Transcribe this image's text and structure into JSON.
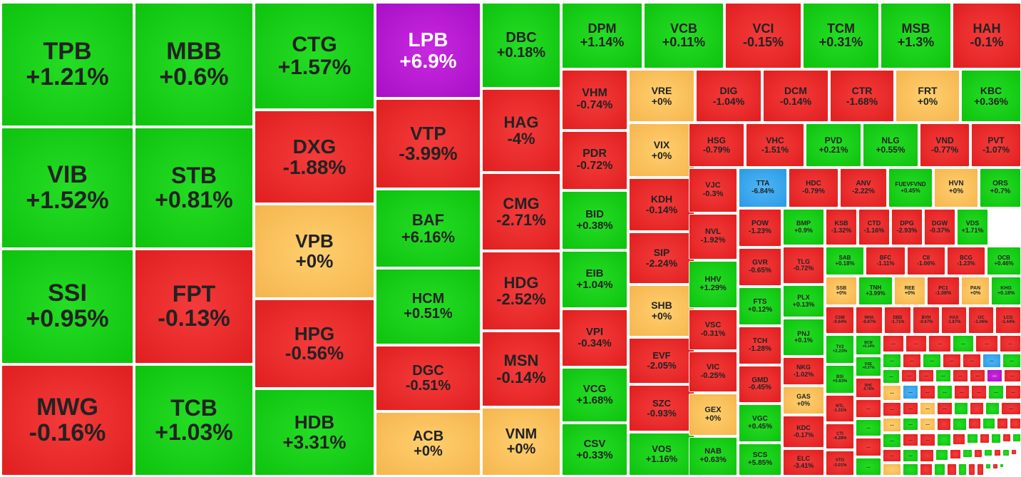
{
  "chart_data": {
    "type": "treemap",
    "title": "",
    "colors": {
      "up": "#13c813",
      "down": "#e82828",
      "reference": "#f9c262",
      "ceiling": "#b418d2",
      "floor": "#3aa8ee"
    },
    "tiles": [
      {
        "symbol": "TPB",
        "change": "+1.21%",
        "status": "up"
      },
      {
        "symbol": "VIB",
        "change": "+1.52%",
        "status": "up"
      },
      {
        "symbol": "SSI",
        "change": "+0.95%",
        "status": "up"
      },
      {
        "symbol": "MWG",
        "change": "-0.16%",
        "status": "down"
      },
      {
        "symbol": "MBB",
        "change": "+0.6%",
        "status": "up"
      },
      {
        "symbol": "STB",
        "change": "+0.81%",
        "status": "up"
      },
      {
        "symbol": "FPT",
        "change": "-0.13%",
        "status": "down"
      },
      {
        "symbol": "TCB",
        "change": "+1.03%",
        "status": "up"
      },
      {
        "symbol": "CTG",
        "change": "+1.57%",
        "status": "up"
      },
      {
        "symbol": "DXG",
        "change": "-1.88%",
        "status": "down"
      },
      {
        "symbol": "VPB",
        "change": "+0%",
        "status": "ref"
      },
      {
        "symbol": "HPG",
        "change": "-0.56%",
        "status": "down"
      },
      {
        "symbol": "HDB",
        "change": "+3.31%",
        "status": "up"
      },
      {
        "symbol": "LPB",
        "change": "+6.9%",
        "status": "ceil"
      },
      {
        "symbol": "VTP",
        "change": "-3.99%",
        "status": "down"
      },
      {
        "symbol": "BAF",
        "change": "+6.16%",
        "status": "up"
      },
      {
        "symbol": "HCM",
        "change": "+0.51%",
        "status": "up"
      },
      {
        "symbol": "DGC",
        "change": "-0.51%",
        "status": "down"
      },
      {
        "symbol": "ACB",
        "change": "+0%",
        "status": "ref"
      },
      {
        "symbol": "DBC",
        "change": "+0.18%",
        "status": "up"
      },
      {
        "symbol": "HAG",
        "change": "-4%",
        "status": "down"
      },
      {
        "symbol": "CMG",
        "change": "-2.71%",
        "status": "down"
      },
      {
        "symbol": "HDG",
        "change": "-2.52%",
        "status": "down"
      },
      {
        "symbol": "MSN",
        "change": "-0.14%",
        "status": "down"
      },
      {
        "symbol": "VNM",
        "change": "+0%",
        "status": "ref"
      },
      {
        "symbol": "DPM",
        "change": "+1.14%",
        "status": "up"
      },
      {
        "symbol": "VCB",
        "change": "+0.11%",
        "status": "up"
      },
      {
        "symbol": "VCI",
        "change": "-0.15%",
        "status": "down"
      },
      {
        "symbol": "TCM",
        "change": "+0.31%",
        "status": "up"
      },
      {
        "symbol": "MSB",
        "change": "+1.3%",
        "status": "up"
      },
      {
        "symbol": "HAH",
        "change": "-0.1%",
        "status": "down"
      },
      {
        "symbol": "VHM",
        "change": "-0.74%",
        "status": "down"
      },
      {
        "symbol": "PDR",
        "change": "-0.72%",
        "status": "down"
      },
      {
        "symbol": "BID",
        "change": "+0.38%",
        "status": "up"
      },
      {
        "symbol": "EIB",
        "change": "+1.04%",
        "status": "up"
      },
      {
        "symbol": "VPI",
        "change": "-0.34%",
        "status": "down"
      },
      {
        "symbol": "VCG",
        "change": "+1.68%",
        "status": "up"
      },
      {
        "symbol": "CSV",
        "change": "+0.33%",
        "status": "up"
      },
      {
        "symbol": "VRE",
        "change": "+0%",
        "status": "ref"
      },
      {
        "symbol": "VIX",
        "change": "+0%",
        "status": "ref"
      },
      {
        "symbol": "KDH",
        "change": "-0.14%",
        "status": "down"
      },
      {
        "symbol": "SIP",
        "change": "-2.24%",
        "status": "down"
      },
      {
        "symbol": "SHB",
        "change": "+0%",
        "status": "ref"
      },
      {
        "symbol": "EVF",
        "change": "-2.05%",
        "status": "down"
      },
      {
        "symbol": "SZC",
        "change": "-0.93%",
        "status": "down"
      },
      {
        "symbol": "VOS",
        "change": "+1.16%",
        "status": "up"
      },
      {
        "symbol": "DIG",
        "change": "-1.04%",
        "status": "down"
      },
      {
        "symbol": "DCM",
        "change": "-0.14%",
        "status": "down"
      },
      {
        "symbol": "CTR",
        "change": "-1.68%",
        "status": "down"
      },
      {
        "symbol": "FRT",
        "change": "+0%",
        "status": "ref"
      },
      {
        "symbol": "KBC",
        "change": "+0.36%",
        "status": "up"
      },
      {
        "symbol": "HSG",
        "change": "-0.79%",
        "status": "down"
      },
      {
        "symbol": "VHC",
        "change": "-1.51%",
        "status": "down"
      },
      {
        "symbol": "PVD",
        "change": "+0.21%",
        "status": "up"
      },
      {
        "symbol": "NLG",
        "change": "+0.55%",
        "status": "up"
      },
      {
        "symbol": "VND",
        "change": "-0.77%",
        "status": "down"
      },
      {
        "symbol": "PVT",
        "change": "-1.07%",
        "status": "down"
      },
      {
        "symbol": "VJC",
        "change": "-0.3%",
        "status": "down"
      },
      {
        "symbol": "TTA",
        "change": "-6.84%",
        "status": "floor"
      },
      {
        "symbol": "HDC",
        "change": "-0.79%",
        "status": "down"
      },
      {
        "symbol": "ANV",
        "change": "-2.22%",
        "status": "down"
      },
      {
        "symbol": "FUEVFVND",
        "change": "+0.45%",
        "status": "up"
      },
      {
        "symbol": "HVN",
        "change": "+0%",
        "status": "ref"
      },
      {
        "symbol": "ORS",
        "change": "+0.7%",
        "status": "up"
      },
      {
        "symbol": "NVL",
        "change": "-1.92%",
        "status": "down"
      },
      {
        "symbol": "HHV",
        "change": "+1.29%",
        "status": "up"
      },
      {
        "symbol": "VSC",
        "change": "-0.31%",
        "status": "down"
      },
      {
        "symbol": "VIC",
        "change": "-0.25%",
        "status": "down"
      },
      {
        "symbol": "GEX",
        "change": "+0%",
        "status": "ref"
      },
      {
        "symbol": "NAB",
        "change": "+0.63%",
        "status": "up"
      },
      {
        "symbol": "POW",
        "change": "-1.23%",
        "status": "down"
      },
      {
        "symbol": "GVR",
        "change": "-0.65%",
        "status": "down"
      },
      {
        "symbol": "FTS",
        "change": "+0.12%",
        "status": "up"
      },
      {
        "symbol": "TCH",
        "change": "-1.28%",
        "status": "down"
      },
      {
        "symbol": "GMD",
        "change": "-0.45%",
        "status": "down"
      },
      {
        "symbol": "VGC",
        "change": "+0.45%",
        "status": "up"
      },
      {
        "symbol": "SCS",
        "change": "+5.85%",
        "status": "up"
      },
      {
        "symbol": "BMP",
        "change": "+0.9%",
        "status": "up"
      },
      {
        "symbol": "TLG",
        "change": "-0.72%",
        "status": "down"
      },
      {
        "symbol": "PLX",
        "change": "+0.13%",
        "status": "up"
      },
      {
        "symbol": "PNJ",
        "change": "+0.1%",
        "status": "up"
      },
      {
        "symbol": "NKG",
        "change": "-1.02%",
        "status": "down"
      },
      {
        "symbol": "GAS",
        "change": "+0%",
        "status": "ref"
      },
      {
        "symbol": "KDC",
        "change": "-0.17%",
        "status": "down"
      },
      {
        "symbol": "ELC",
        "change": "-3.41%",
        "status": "down"
      },
      {
        "symbol": "KSB",
        "change": "-1.32%",
        "status": "down"
      },
      {
        "symbol": "CTD",
        "change": "-1.16%",
        "status": "down"
      },
      {
        "symbol": "DPG",
        "change": "-2.93%",
        "status": "down"
      },
      {
        "symbol": "DGW",
        "change": "-0.37%",
        "status": "down"
      },
      {
        "symbol": "VDS",
        "change": "+1.71%",
        "status": "up"
      },
      {
        "symbol": "SAB",
        "change": "+0.18%",
        "status": "up"
      },
      {
        "symbol": "BFC",
        "change": "-1.11%",
        "status": "down"
      },
      {
        "symbol": "CII",
        "change": "-1.06%",
        "status": "down"
      },
      {
        "symbol": "BCG",
        "change": "-1.23%",
        "status": "down"
      },
      {
        "symbol": "OCB",
        "change": "+0.46%",
        "status": "up"
      },
      {
        "symbol": "SSB",
        "change": "+0%",
        "status": "ref"
      },
      {
        "symbol": "TNH",
        "change": "+3.99%",
        "status": "up"
      },
      {
        "symbol": "REE",
        "change": "+0%",
        "status": "ref"
      },
      {
        "symbol": "PC1",
        "change": "-1.08%",
        "status": "down"
      },
      {
        "symbol": "PAN",
        "change": "+0%",
        "status": "ref"
      },
      {
        "symbol": "KHG",
        "change": "+0.18%",
        "status": "up"
      },
      {
        "symbol": "CSM",
        "change": "-0.64%",
        "status": "down"
      },
      {
        "symbol": "NHA",
        "change": "-0.87%",
        "status": "down"
      },
      {
        "symbol": "DBD",
        "change": "-1.71%",
        "status": "down"
      },
      {
        "symbol": "BVH",
        "change": "-0.67%",
        "status": "down"
      },
      {
        "symbol": "HAX",
        "change": "-1.87%",
        "status": "down"
      },
      {
        "symbol": "IJC",
        "change": "-1.06%",
        "status": "down"
      },
      {
        "symbol": "LCG",
        "change": "-1.44%",
        "status": "down"
      },
      {
        "symbol": "TV2",
        "change": "+2.23%",
        "status": "up"
      },
      {
        "symbol": "BCM",
        "change": "+0.14%",
        "status": "up"
      },
      {
        "symbol": "BSI",
        "change": "+0.83%",
        "status": "up"
      },
      {
        "symbol": "DSE",
        "change": "+0.37%",
        "status": "up"
      },
      {
        "symbol": "DHC",
        "change": "-0.78%",
        "status": "down"
      },
      {
        "symbol": "NTL",
        "change": "-1.31%",
        "status": "down"
      },
      {
        "symbol": "CTI",
        "change": "-4.28%",
        "status": "down"
      },
      {
        "symbol": "VTO",
        "change": "-3.01%",
        "status": "down"
      }
    ],
    "overflow_label": "..."
  }
}
